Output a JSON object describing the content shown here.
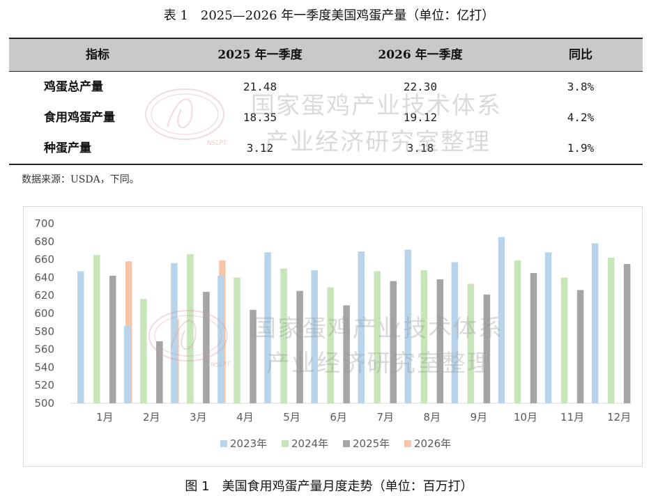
{
  "table": {
    "title": "表 1　2025—2026 年一季度美国鸡蛋产量（单位：亿打）",
    "headers": [
      "指标",
      "2025 年一季度",
      "2026 年一季度",
      "同比"
    ],
    "rows": [
      [
        "鸡蛋总产量",
        "21.48",
        "22.30",
        "3.8%"
      ],
      [
        "食用鸡蛋产量",
        "18.35",
        "19.12",
        "4.2%"
      ],
      [
        "种蛋产量",
        "3.12",
        "3.18",
        "1.9%"
      ]
    ]
  },
  "source_note": "数据来源：USDA，下同。",
  "watermark": {
    "line1": "国家蛋鸡产业技术体系",
    "line2": "产业经济研究室整理",
    "logo_text": "NSLPT"
  },
  "figure_title": "图 1　美国食用鸡蛋产量月度走势（单位：百万打）",
  "chart_data": {
    "type": "bar",
    "categories": [
      "1月",
      "2月",
      "3月",
      "4月",
      "5月",
      "6月",
      "7月",
      "8月",
      "9月",
      "10月",
      "11月",
      "12月"
    ],
    "series": [
      {
        "name": "2023年",
        "color": "#b7d4ea",
        "values": [
          647,
          586,
          656,
          642,
          668,
          648,
          669,
          671,
          657,
          685,
          668,
          678
        ]
      },
      {
        "name": "2024年",
        "color": "#c6e5b8",
        "values": [
          665,
          616,
          666,
          640,
          650,
          629,
          647,
          648,
          633,
          659,
          640,
          662
        ]
      },
      {
        "name": "2025年",
        "color": "#a5a5a5",
        "values": [
          642,
          569,
          624,
          604,
          625,
          609,
          636,
          638,
          621,
          645,
          626,
          655
        ]
      },
      {
        "name": "2026年",
        "color": "#f7c6a9",
        "values": [
          658,
          594,
          659,
          null,
          null,
          null,
          null,
          null,
          null,
          null,
          null,
          null
        ]
      }
    ],
    "ylim": [
      500,
      700
    ],
    "yticks": [
      "500",
      "520",
      "540",
      "560",
      "580",
      "600",
      "620",
      "640",
      "660",
      "680",
      "700"
    ],
    "grid": false,
    "legend": "bottom"
  }
}
